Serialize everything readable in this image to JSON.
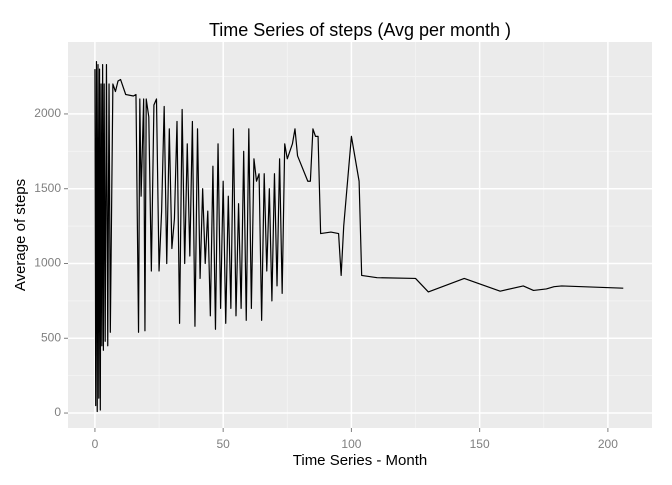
{
  "chart_data": {
    "type": "line",
    "title": "Time Series of steps (Avg per month )",
    "x_label": "Time Series - Month",
    "y_label": "Average of steps",
    "x": [
      0,
      0.3,
      0.6,
      0.9,
      1.2,
      1.5,
      1.8,
      2.1,
      2.4,
      2.7,
      3,
      3.3,
      3.6,
      4,
      4.5,
      5,
      5.5,
      6,
      7,
      8,
      9,
      10,
      12,
      15,
      16,
      17,
      17.5,
      18,
      19,
      19.5,
      20,
      21,
      22,
      23,
      24,
      25,
      26,
      27,
      28,
      29,
      30,
      31,
      32,
      33,
      34,
      35,
      36,
      37,
      38,
      39,
      40,
      41,
      42,
      43,
      44,
      45,
      46,
      47,
      48,
      49,
      50,
      51,
      52,
      53,
      54,
      55,
      56,
      57,
      58,
      59,
      60,
      61,
      62,
      63,
      64,
      65,
      66,
      67,
      68,
      69,
      70,
      71,
      72,
      73,
      74,
      75,
      77,
      78,
      79,
      83,
      84,
      85,
      86,
      87,
      88,
      92,
      95,
      96,
      97,
      100,
      103,
      104,
      108,
      110,
      125,
      130,
      144,
      158,
      167,
      171,
      176,
      179,
      182,
      190,
      206
    ],
    "series": [
      {
        "name": "steps",
        "color": "#000000",
        "values": [
          2300,
          50,
          2350,
          10,
          2330,
          100,
          2300,
          20,
          2200,
          450,
          2330,
          420,
          2200,
          480,
          2330,
          450,
          2200,
          540,
          2200,
          2150,
          2220,
          2230,
          2130,
          2120,
          2130,
          540,
          2100,
          1450,
          2100,
          550,
          2100,
          1980,
          950,
          2060,
          2100,
          950,
          1350,
          2050,
          1000,
          1900,
          1100,
          1300,
          1950,
          600,
          2030,
          1000,
          1800,
          1050,
          1950,
          580,
          1900,
          900,
          1500,
          1000,
          1350,
          650,
          1650,
          560,
          1800,
          700,
          1550,
          600,
          1450,
          700,
          1900,
          650,
          1400,
          700,
          1750,
          620,
          1900,
          700,
          1700,
          1550,
          1600,
          620,
          1600,
          950,
          1500,
          750,
          1600,
          850,
          1700,
          800,
          1800,
          1700,
          1800,
          1900,
          1720,
          1550,
          1550,
          1900,
          1850,
          1850,
          1200,
          1210,
          1200,
          920,
          1250,
          1850,
          1550,
          920,
          910,
          905,
          900,
          810,
          900,
          815,
          850,
          820,
          830,
          845,
          850,
          845,
          835
        ]
      }
    ],
    "xlim": [
      -10.5,
      217.2
    ],
    "ylim": [
      -100,
      2481
    ],
    "xticks": [
      0,
      50,
      100,
      150,
      200
    ],
    "yticks": [
      0,
      500,
      1000,
      1500,
      2000
    ],
    "xminor": [
      25,
      75,
      125,
      175
    ],
    "yminor": [
      250,
      750,
      1250,
      1750,
      2250
    ],
    "grid": true
  }
}
